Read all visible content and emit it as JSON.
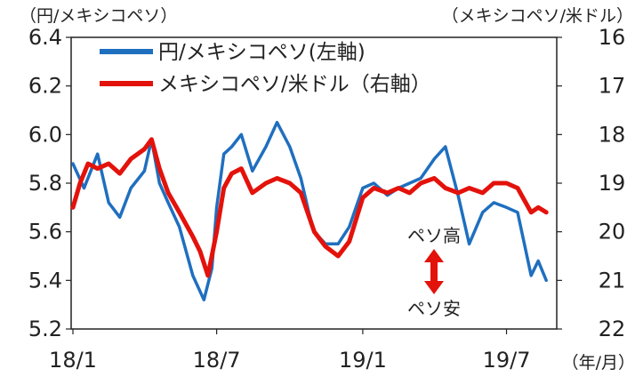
{
  "chart_data": {
    "type": "line",
    "left_axis": {
      "unit": "（円/メキシコペソ）",
      "ylim": [
        5.2,
        6.4
      ],
      "ticks": [
        "6.4",
        "6.2",
        "6.0",
        "5.8",
        "5.6",
        "5.4",
        "5.2"
      ]
    },
    "right_axis": {
      "unit": "（メキシコペソ/米ドル）",
      "ylim": [
        16,
        22
      ],
      "inverted": true,
      "ticks": [
        "16",
        "17",
        "18",
        "19",
        "20",
        "21",
        "22"
      ]
    },
    "x_axis": {
      "ticks": [
        "18/1",
        "18/7",
        "19/1",
        "19/7"
      ],
      "unit": "（年/月）"
    },
    "series": [
      {
        "name": "円/メキシコペソ(左軸)",
        "axis": "left",
        "color": "#1f6fbf",
        "points": [
          [
            "2018-01",
            5.88
          ],
          [
            "2018-01-15",
            5.78
          ],
          [
            "2018-02",
            5.92
          ],
          [
            "2018-02-15",
            5.72
          ],
          [
            "2018-03",
            5.66
          ],
          [
            "2018-03-15",
            5.78
          ],
          [
            "2018-04",
            5.85
          ],
          [
            "2018-04-10",
            5.98
          ],
          [
            "2018-04-20",
            5.8
          ],
          [
            "2018-05",
            5.72
          ],
          [
            "2018-05-15",
            5.62
          ],
          [
            "2018-06",
            5.42
          ],
          [
            "2018-06-15",
            5.32
          ],
          [
            "2018-06-25",
            5.45
          ],
          [
            "2018-07",
            5.7
          ],
          [
            "2018-07-10",
            5.92
          ],
          [
            "2018-07-20",
            5.95
          ],
          [
            "2018-08",
            6.0
          ],
          [
            "2018-08-15",
            5.85
          ],
          [
            "2018-09",
            5.95
          ],
          [
            "2018-09-15",
            6.05
          ],
          [
            "2018-10",
            5.95
          ],
          [
            "2018-10-15",
            5.82
          ],
          [
            "2018-10-25",
            5.68
          ],
          [
            "2018-11",
            5.6
          ],
          [
            "2018-11-15",
            5.55
          ],
          [
            "2018-12",
            5.55
          ],
          [
            "2018-12-15",
            5.62
          ],
          [
            "2019-01",
            5.78
          ],
          [
            "2019-01-15",
            5.8
          ],
          [
            "2019-02",
            5.75
          ],
          [
            "2019-02-15",
            5.78
          ],
          [
            "2019-03",
            5.8
          ],
          [
            "2019-03-15",
            5.82
          ],
          [
            "2019-04",
            5.9
          ],
          [
            "2019-04-15",
            5.95
          ],
          [
            "2019-05",
            5.75
          ],
          [
            "2019-05-15",
            5.55
          ],
          [
            "2019-06",
            5.68
          ],
          [
            "2019-06-15",
            5.72
          ],
          [
            "2019-07",
            5.7
          ],
          [
            "2019-07-15",
            5.68
          ],
          [
            "2019-08",
            5.42
          ],
          [
            "2019-08-10",
            5.48
          ],
          [
            "2019-08-20",
            5.4
          ]
        ]
      },
      {
        "name": "メキシコペソ/米ドル（右軸）",
        "axis": "right",
        "color": "#e3120b",
        "points": [
          [
            "2018-01",
            19.5
          ],
          [
            "2018-01-10",
            19.0
          ],
          [
            "2018-01-20",
            18.6
          ],
          [
            "2018-02",
            18.7
          ],
          [
            "2018-02-15",
            18.6
          ],
          [
            "2018-03",
            18.8
          ],
          [
            "2018-03-15",
            18.5
          ],
          [
            "2018-04",
            18.3
          ],
          [
            "2018-04-10",
            18.1
          ],
          [
            "2018-04-20",
            18.7
          ],
          [
            "2018-05",
            19.2
          ],
          [
            "2018-05-15",
            19.6
          ],
          [
            "2018-06",
            20.1
          ],
          [
            "2018-06-10",
            20.4
          ],
          [
            "2018-06-20",
            20.9
          ],
          [
            "2018-07",
            20.0
          ],
          [
            "2018-07-10",
            19.1
          ],
          [
            "2018-07-20",
            18.8
          ],
          [
            "2018-08",
            18.7
          ],
          [
            "2018-08-15",
            19.2
          ],
          [
            "2018-09",
            19.0
          ],
          [
            "2018-09-15",
            18.9
          ],
          [
            "2018-10",
            19.0
          ],
          [
            "2018-10-15",
            19.2
          ],
          [
            "2018-11",
            20.0
          ],
          [
            "2018-11-15",
            20.3
          ],
          [
            "2018-12",
            20.5
          ],
          [
            "2018-12-15",
            20.2
          ],
          [
            "2019-01",
            19.3
          ],
          [
            "2019-01-15",
            19.1
          ],
          [
            "2019-02",
            19.2
          ],
          [
            "2019-02-15",
            19.1
          ],
          [
            "2019-03",
            19.2
          ],
          [
            "2019-03-15",
            19.0
          ],
          [
            "2019-04",
            18.9
          ],
          [
            "2019-04-15",
            19.1
          ],
          [
            "2019-05",
            19.2
          ],
          [
            "2019-05-15",
            19.1
          ],
          [
            "2019-06",
            19.2
          ],
          [
            "2019-06-15",
            19.0
          ],
          [
            "2019-07",
            19.0
          ],
          [
            "2019-07-15",
            19.1
          ],
          [
            "2019-08",
            19.6
          ],
          [
            "2019-08-10",
            19.5
          ],
          [
            "2019-08-20",
            19.6
          ]
        ]
      }
    ],
    "annotations": {
      "up": "ペソ高",
      "down": "ペソ安"
    },
    "grid": false,
    "legend_placement": "top-left"
  }
}
